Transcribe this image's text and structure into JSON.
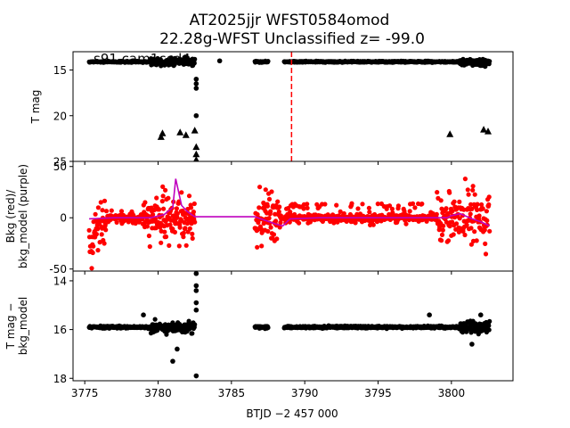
{
  "title_line1": "AT2025jjr  WFST0584omod",
  "title_line2": "22.28g-WFST Unclassified z= -99.0",
  "xlabel": "BTJD −2 457 000",
  "colors": {
    "points": "#000000",
    "bkg": "#ff0000",
    "bkg_model": "#bf00bf",
    "vline": "#ff0000"
  },
  "chart_data": [
    {
      "type": "scatter",
      "panel": "T mag",
      "ylabel": "T mag",
      "annotation": "s91 cam1ccd4",
      "ylim": [
        25,
        13
      ],
      "yticks": [
        15,
        20,
        25
      ],
      "xlim": [
        3774.2,
        3804.2
      ],
      "vline_x": 3789.1,
      "segments": [
        {
          "x0": 3775.3,
          "x1": 3782.5,
          "y": 14.1
        },
        {
          "x0": 3786.6,
          "x1": 3787.5,
          "y": 14.1
        },
        {
          "x0": 3788.6,
          "x1": 3802.6,
          "y": 14.1
        }
      ],
      "points": [
        [
          3784.2,
          14.0
        ],
        [
          3782.6,
          16.0
        ],
        [
          3782.6,
          16.5
        ],
        [
          3782.6,
          17.0
        ],
        [
          3782.6,
          20.0
        ],
        [
          3801.5,
          14.3
        ],
        [
          3802.3,
          14.6
        ]
      ],
      "upper_limits": [
        [
          3780.2,
          22.3
        ],
        [
          3780.3,
          21.9
        ],
        [
          3781.5,
          21.8
        ],
        [
          3781.9,
          22.1
        ],
        [
          3782.5,
          21.6
        ],
        [
          3799.9,
          22.0
        ],
        [
          3802.2,
          21.5
        ],
        [
          3802.5,
          21.7
        ],
        [
          3782.6,
          23.4
        ],
        [
          3782.6,
          24.2
        ],
        [
          3782.6,
          24.8
        ]
      ]
    },
    {
      "type": "scatter",
      "panel": "Bkg",
      "ylabel": [
        "Bkg (red)/",
        "bkg_model (purple)"
      ],
      "ylim": [
        -52,
        55
      ],
      "yticks": [
        -50,
        0,
        50
      ],
      "segments": [
        {
          "x0": 3775.3,
          "x1": 3782.5,
          "spread": 45
        },
        {
          "x0": 3786.6,
          "x1": 3788.4,
          "spread": 45
        },
        {
          "x0": 3788.6,
          "x1": 3802.6,
          "spread": 8
        }
      ],
      "model_line": [
        [
          3775.3,
          -1
        ],
        [
          3777,
          0
        ],
        [
          3779.5,
          0
        ],
        [
          3780.4,
          3
        ],
        [
          3781.0,
          10
        ],
        [
          3781.2,
          38
        ],
        [
          3781.6,
          12
        ],
        [
          3782.0,
          6
        ],
        [
          3782.5,
          1
        ],
        [
          3786.6,
          1
        ],
        [
          3788.0,
          -6
        ],
        [
          3788.5,
          -8
        ],
        [
          3789.0,
          -1
        ],
        [
          3791,
          0
        ],
        [
          3799.7,
          0
        ],
        [
          3800.0,
          2
        ],
        [
          3800.6,
          4
        ],
        [
          3801.4,
          -1
        ],
        [
          3802.0,
          -4
        ],
        [
          3802.6,
          -8
        ]
      ]
    },
    {
      "type": "scatter",
      "panel": "T mag - bkg_model",
      "ylabel": [
        "T mag −",
        "bkg_model"
      ],
      "ylim": [
        18.1,
        13.6
      ],
      "yticks": [
        14,
        16,
        18
      ],
      "xticks": [
        3775,
        3780,
        3785,
        3790,
        3795,
        3800
      ],
      "segments": [
        {
          "x0": 3775.3,
          "x1": 3782.5,
          "y": 15.9
        },
        {
          "x0": 3786.6,
          "x1": 3787.5,
          "y": 15.9
        },
        {
          "x0": 3788.6,
          "x1": 3802.6,
          "y": 15.9
        }
      ],
      "points": [
        [
          3782.6,
          13.7
        ],
        [
          3782.6,
          14.2
        ],
        [
          3782.6,
          14.4
        ],
        [
          3782.6,
          14.9
        ],
        [
          3782.6,
          15.2
        ],
        [
          3782.6,
          17.9
        ],
        [
          3781.3,
          16.8
        ],
        [
          3781.0,
          17.3
        ],
        [
          3779.0,
          15.4
        ],
        [
          3798.5,
          15.4
        ],
        [
          3802.0,
          15.4
        ],
        [
          3801.4,
          16.6
        ]
      ]
    }
  ]
}
